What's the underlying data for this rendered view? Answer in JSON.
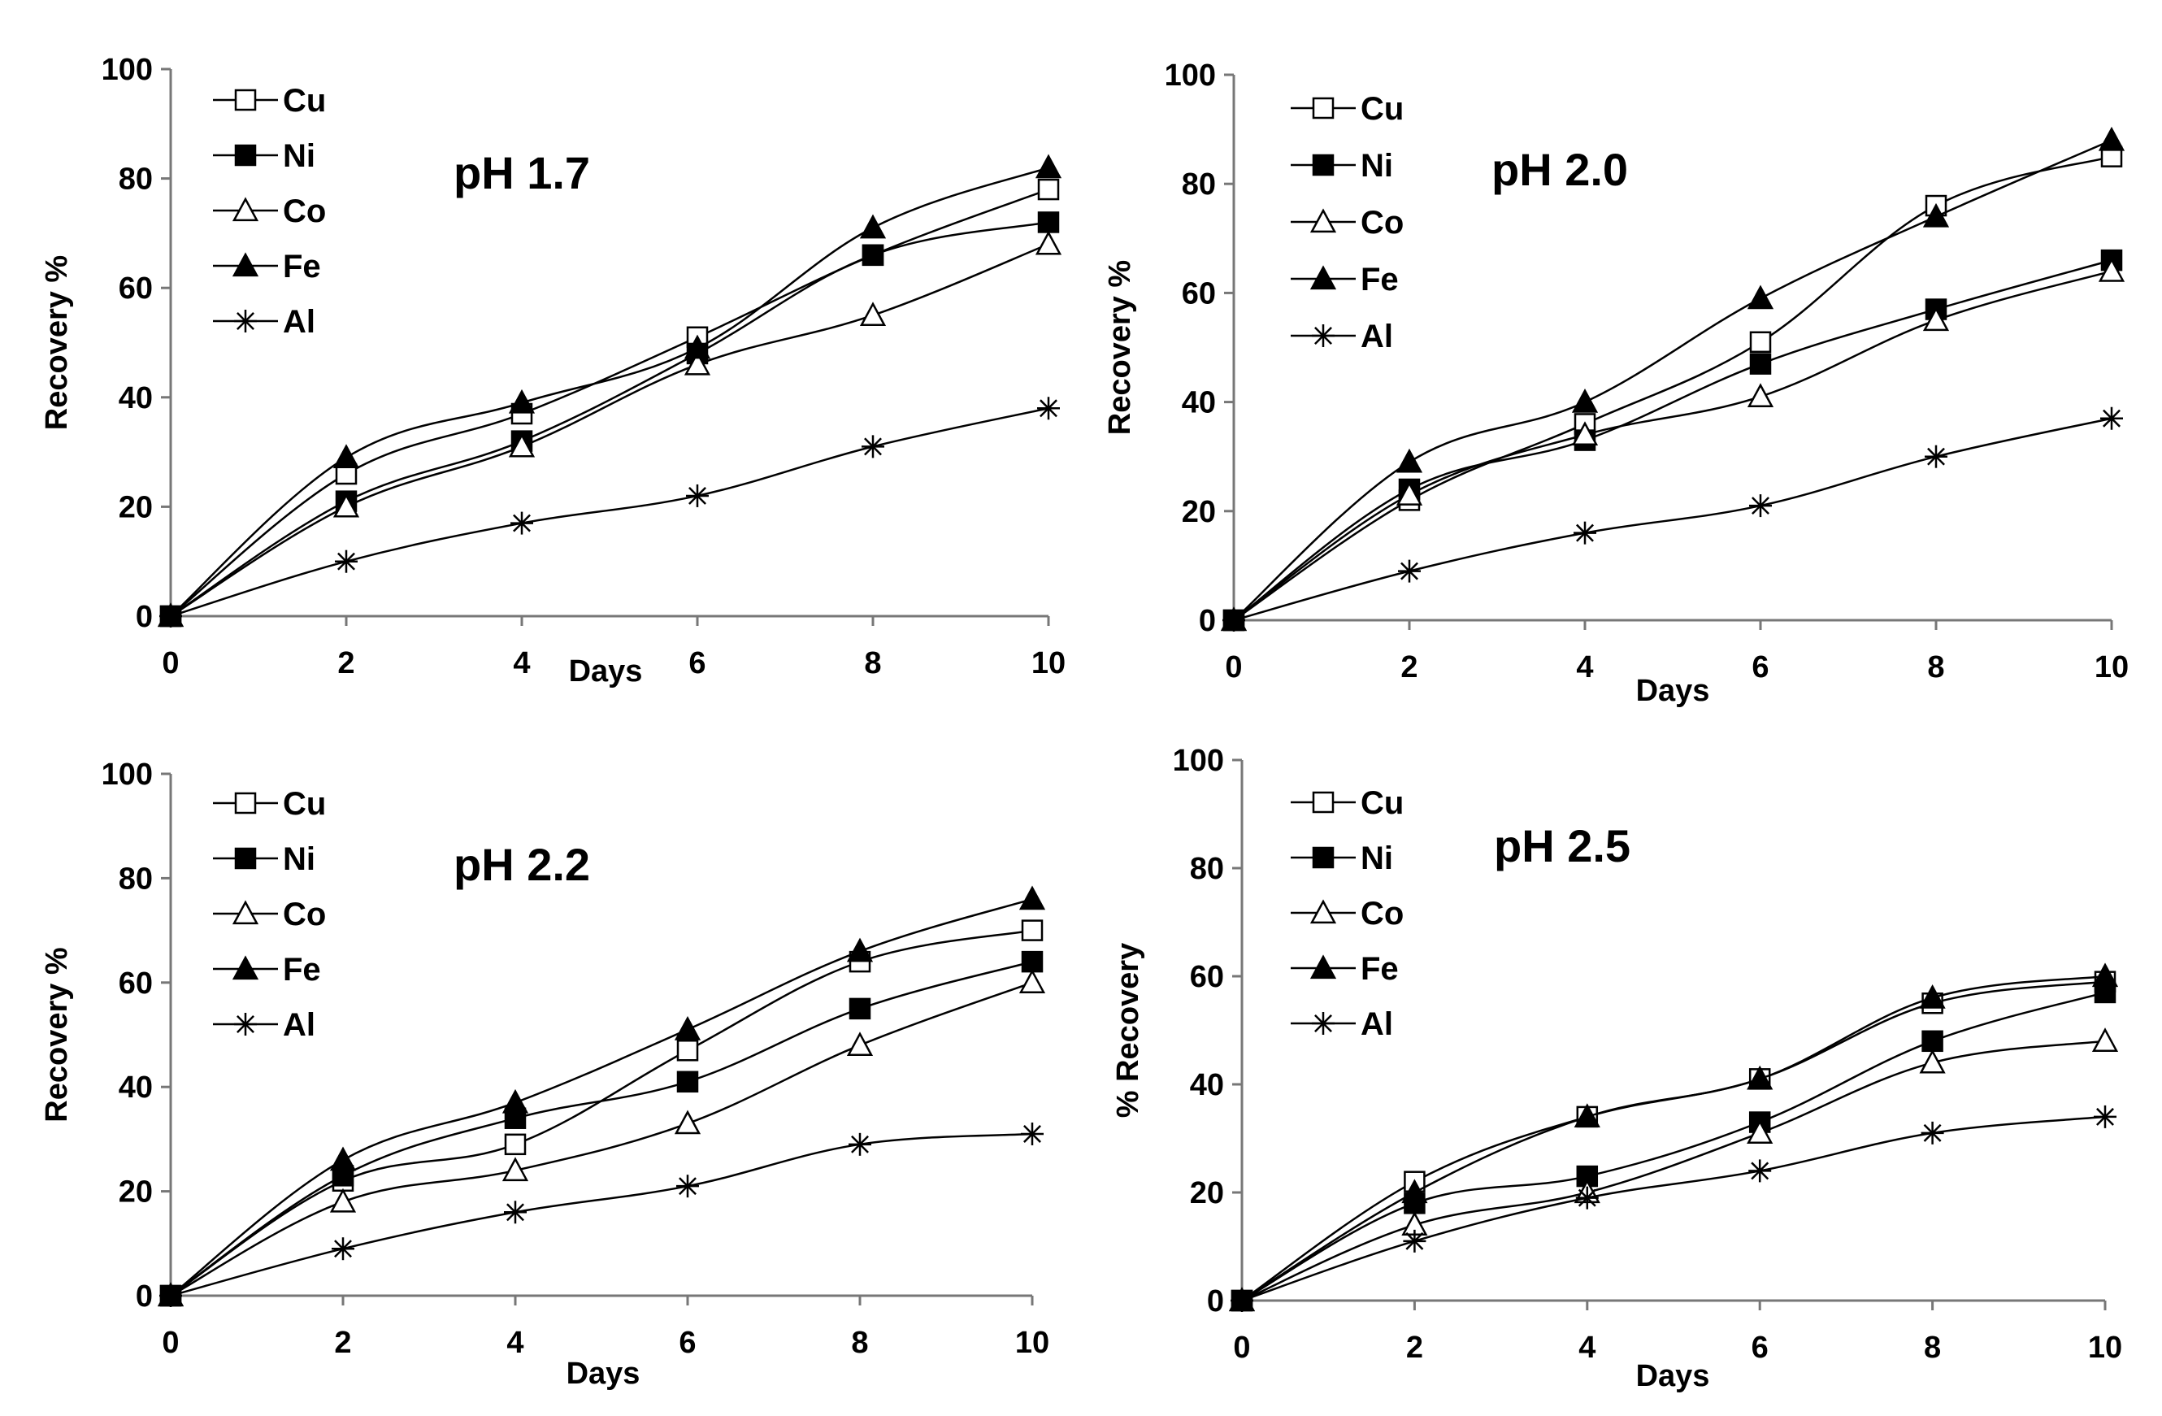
{
  "chart_data": [
    {
      "type": "line",
      "title": "pH 1.7",
      "xlabel": "Days",
      "ylabel": "Recovery %",
      "x": [
        0,
        2,
        4,
        6,
        8,
        10
      ],
      "xlim": [
        0,
        10
      ],
      "ylim": [
        0,
        100
      ],
      "xticks": [
        "0",
        "2",
        "4",
        "6",
        "8",
        "10"
      ],
      "yticks": [
        "0",
        "20",
        "40",
        "60",
        "80",
        "100"
      ],
      "grid": false,
      "legend": "top-left",
      "series": [
        {
          "name": "Cu",
          "marker": "open-square",
          "values": [
            0,
            26,
            37,
            51,
            66,
            78
          ]
        },
        {
          "name": "Ni",
          "marker": "filled-square",
          "values": [
            0,
            21,
            32,
            48,
            66,
            72
          ]
        },
        {
          "name": "Co",
          "marker": "open-triangle",
          "values": [
            0,
            20,
            31,
            46,
            55,
            68
          ]
        },
        {
          "name": "Fe",
          "marker": "filled-triangle",
          "values": [
            0,
            29,
            39,
            49,
            71,
            82
          ]
        },
        {
          "name": "Al",
          "marker": "asterisk",
          "values": [
            0,
            10,
            17,
            22,
            31,
            38
          ]
        }
      ]
    },
    {
      "type": "line",
      "title": "pH 2.0",
      "xlabel": "Days",
      "ylabel": "Recovery %",
      "x": [
        0,
        2,
        4,
        6,
        8,
        10
      ],
      "xlim": [
        0,
        10
      ],
      "ylim": [
        0,
        100
      ],
      "xticks": [
        "0",
        "2",
        "4",
        "6",
        "8",
        "10"
      ],
      "yticks": [
        "0",
        "20",
        "40",
        "60",
        "80",
        "100"
      ],
      "grid": false,
      "legend": "top-left",
      "series": [
        {
          "name": "Cu",
          "marker": "open-square",
          "values": [
            0,
            22,
            36,
            51,
            76,
            85
          ]
        },
        {
          "name": "Ni",
          "marker": "filled-square",
          "values": [
            0,
            24,
            33,
            47,
            57,
            66
          ]
        },
        {
          "name": "Co",
          "marker": "open-triangle",
          "values": [
            0,
            23,
            34,
            41,
            55,
            64
          ]
        },
        {
          "name": "Fe",
          "marker": "filled-triangle",
          "values": [
            0,
            29,
            40,
            59,
            74,
            88
          ]
        },
        {
          "name": "Al",
          "marker": "asterisk",
          "values": [
            0,
            9,
            16,
            21,
            30,
            37
          ]
        }
      ]
    },
    {
      "type": "line",
      "title": "pH 2.2",
      "xlabel": "Days",
      "ylabel": "Recovery %",
      "x": [
        0,
        2,
        4,
        6,
        8,
        10
      ],
      "xlim": [
        0,
        10
      ],
      "ylim": [
        0,
        100
      ],
      "xticks": [
        "0",
        "2",
        "4",
        "6",
        "8",
        "10"
      ],
      "yticks": [
        "0",
        "20",
        "40",
        "60",
        "80",
        "100"
      ],
      "grid": false,
      "legend": "top-left",
      "series": [
        {
          "name": "Cu",
          "marker": "open-square",
          "values": [
            0,
            22,
            29,
            47,
            64,
            70
          ]
        },
        {
          "name": "Ni",
          "marker": "filled-square",
          "values": [
            0,
            23,
            34,
            41,
            55,
            64
          ]
        },
        {
          "name": "Co",
          "marker": "open-triangle",
          "values": [
            0,
            18,
            24,
            33,
            48,
            60
          ]
        },
        {
          "name": "Fe",
          "marker": "filled-triangle",
          "values": [
            0,
            26,
            37,
            51,
            66,
            76
          ]
        },
        {
          "name": "Al",
          "marker": "asterisk",
          "values": [
            0,
            9,
            16,
            21,
            29,
            31
          ]
        }
      ]
    },
    {
      "type": "line",
      "title": "pH 2.5",
      "xlabel": "Days",
      "ylabel": "% Recovery",
      "x": [
        0,
        2,
        4,
        6,
        8,
        10
      ],
      "xlim": [
        0,
        10
      ],
      "ylim": [
        0,
        100
      ],
      "xticks": [
        "0",
        "2",
        "4",
        "6",
        "8",
        "10"
      ],
      "yticks": [
        "0",
        "20",
        "40",
        "60",
        "80",
        "100"
      ],
      "grid": false,
      "legend": "top-left",
      "series": [
        {
          "name": "Cu",
          "marker": "open-square",
          "values": [
            0,
            22,
            34,
            41,
            55,
            59
          ]
        },
        {
          "name": "Ni",
          "marker": "filled-square",
          "values": [
            0,
            18,
            23,
            33,
            48,
            57
          ]
        },
        {
          "name": "Co",
          "marker": "open-triangle",
          "values": [
            0,
            14,
            20,
            31,
            44,
            48
          ]
        },
        {
          "name": "Fe",
          "marker": "filled-triangle",
          "values": [
            0,
            20,
            34,
            41,
            56,
            60
          ]
        },
        {
          "name": "Al",
          "marker": "asterisk",
          "values": [
            0,
            11,
            19,
            24,
            31,
            34
          ]
        }
      ]
    }
  ]
}
